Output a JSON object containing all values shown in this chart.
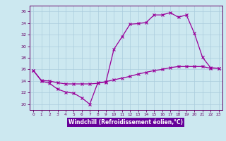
{
  "xlabel": "Windchill (Refroidissement éolien,°C)",
  "background_color": "#cce8f0",
  "plot_bg_color": "#cce8f0",
  "grid_color": "#aaccdd",
  "line_color": "#990099",
  "tick_color": "#660066",
  "spine_color": "#660066",
  "xlabel_color": "#ffffff",
  "xlabel_bg": "#660099",
  "xlim": [
    -0.5,
    23.5
  ],
  "ylim": [
    19.0,
    37.0
  ],
  "yticks": [
    20,
    22,
    24,
    26,
    28,
    30,
    32,
    34,
    36
  ],
  "xticks": [
    0,
    1,
    2,
    3,
    4,
    5,
    6,
    7,
    8,
    9,
    10,
    11,
    12,
    13,
    14,
    15,
    16,
    17,
    18,
    19,
    20,
    21,
    22,
    23
  ],
  "line1_x": [
    0,
    1,
    2,
    3,
    4,
    5,
    6,
    7,
    8,
    9,
    10,
    11,
    12,
    13,
    14,
    15,
    16,
    17,
    18,
    19,
    20,
    21,
    22,
    23
  ],
  "line1_y": [
    25.8,
    24.0,
    23.6,
    22.6,
    22.1,
    21.9,
    21.1,
    20.0,
    23.7,
    23.8,
    29.5,
    31.6,
    33.8,
    33.9,
    34.1,
    35.4,
    35.4,
    35.8,
    35.0,
    35.4,
    32.2,
    28.1,
    26.3,
    26.2
  ],
  "line2_x": [
    0,
    1,
    2,
    3,
    4,
    5,
    6,
    7,
    8,
    9,
    10,
    11,
    12,
    13,
    14,
    15,
    16,
    17,
    18,
    19,
    20,
    21,
    22,
    23
  ],
  "line2_y": [
    25.8,
    24.1,
    24.0,
    23.7,
    23.5,
    23.5,
    23.5,
    23.5,
    23.6,
    23.9,
    24.2,
    24.5,
    24.8,
    25.2,
    25.5,
    25.8,
    26.0,
    26.3,
    26.5,
    26.5,
    26.5,
    26.5,
    26.2,
    26.2
  ]
}
